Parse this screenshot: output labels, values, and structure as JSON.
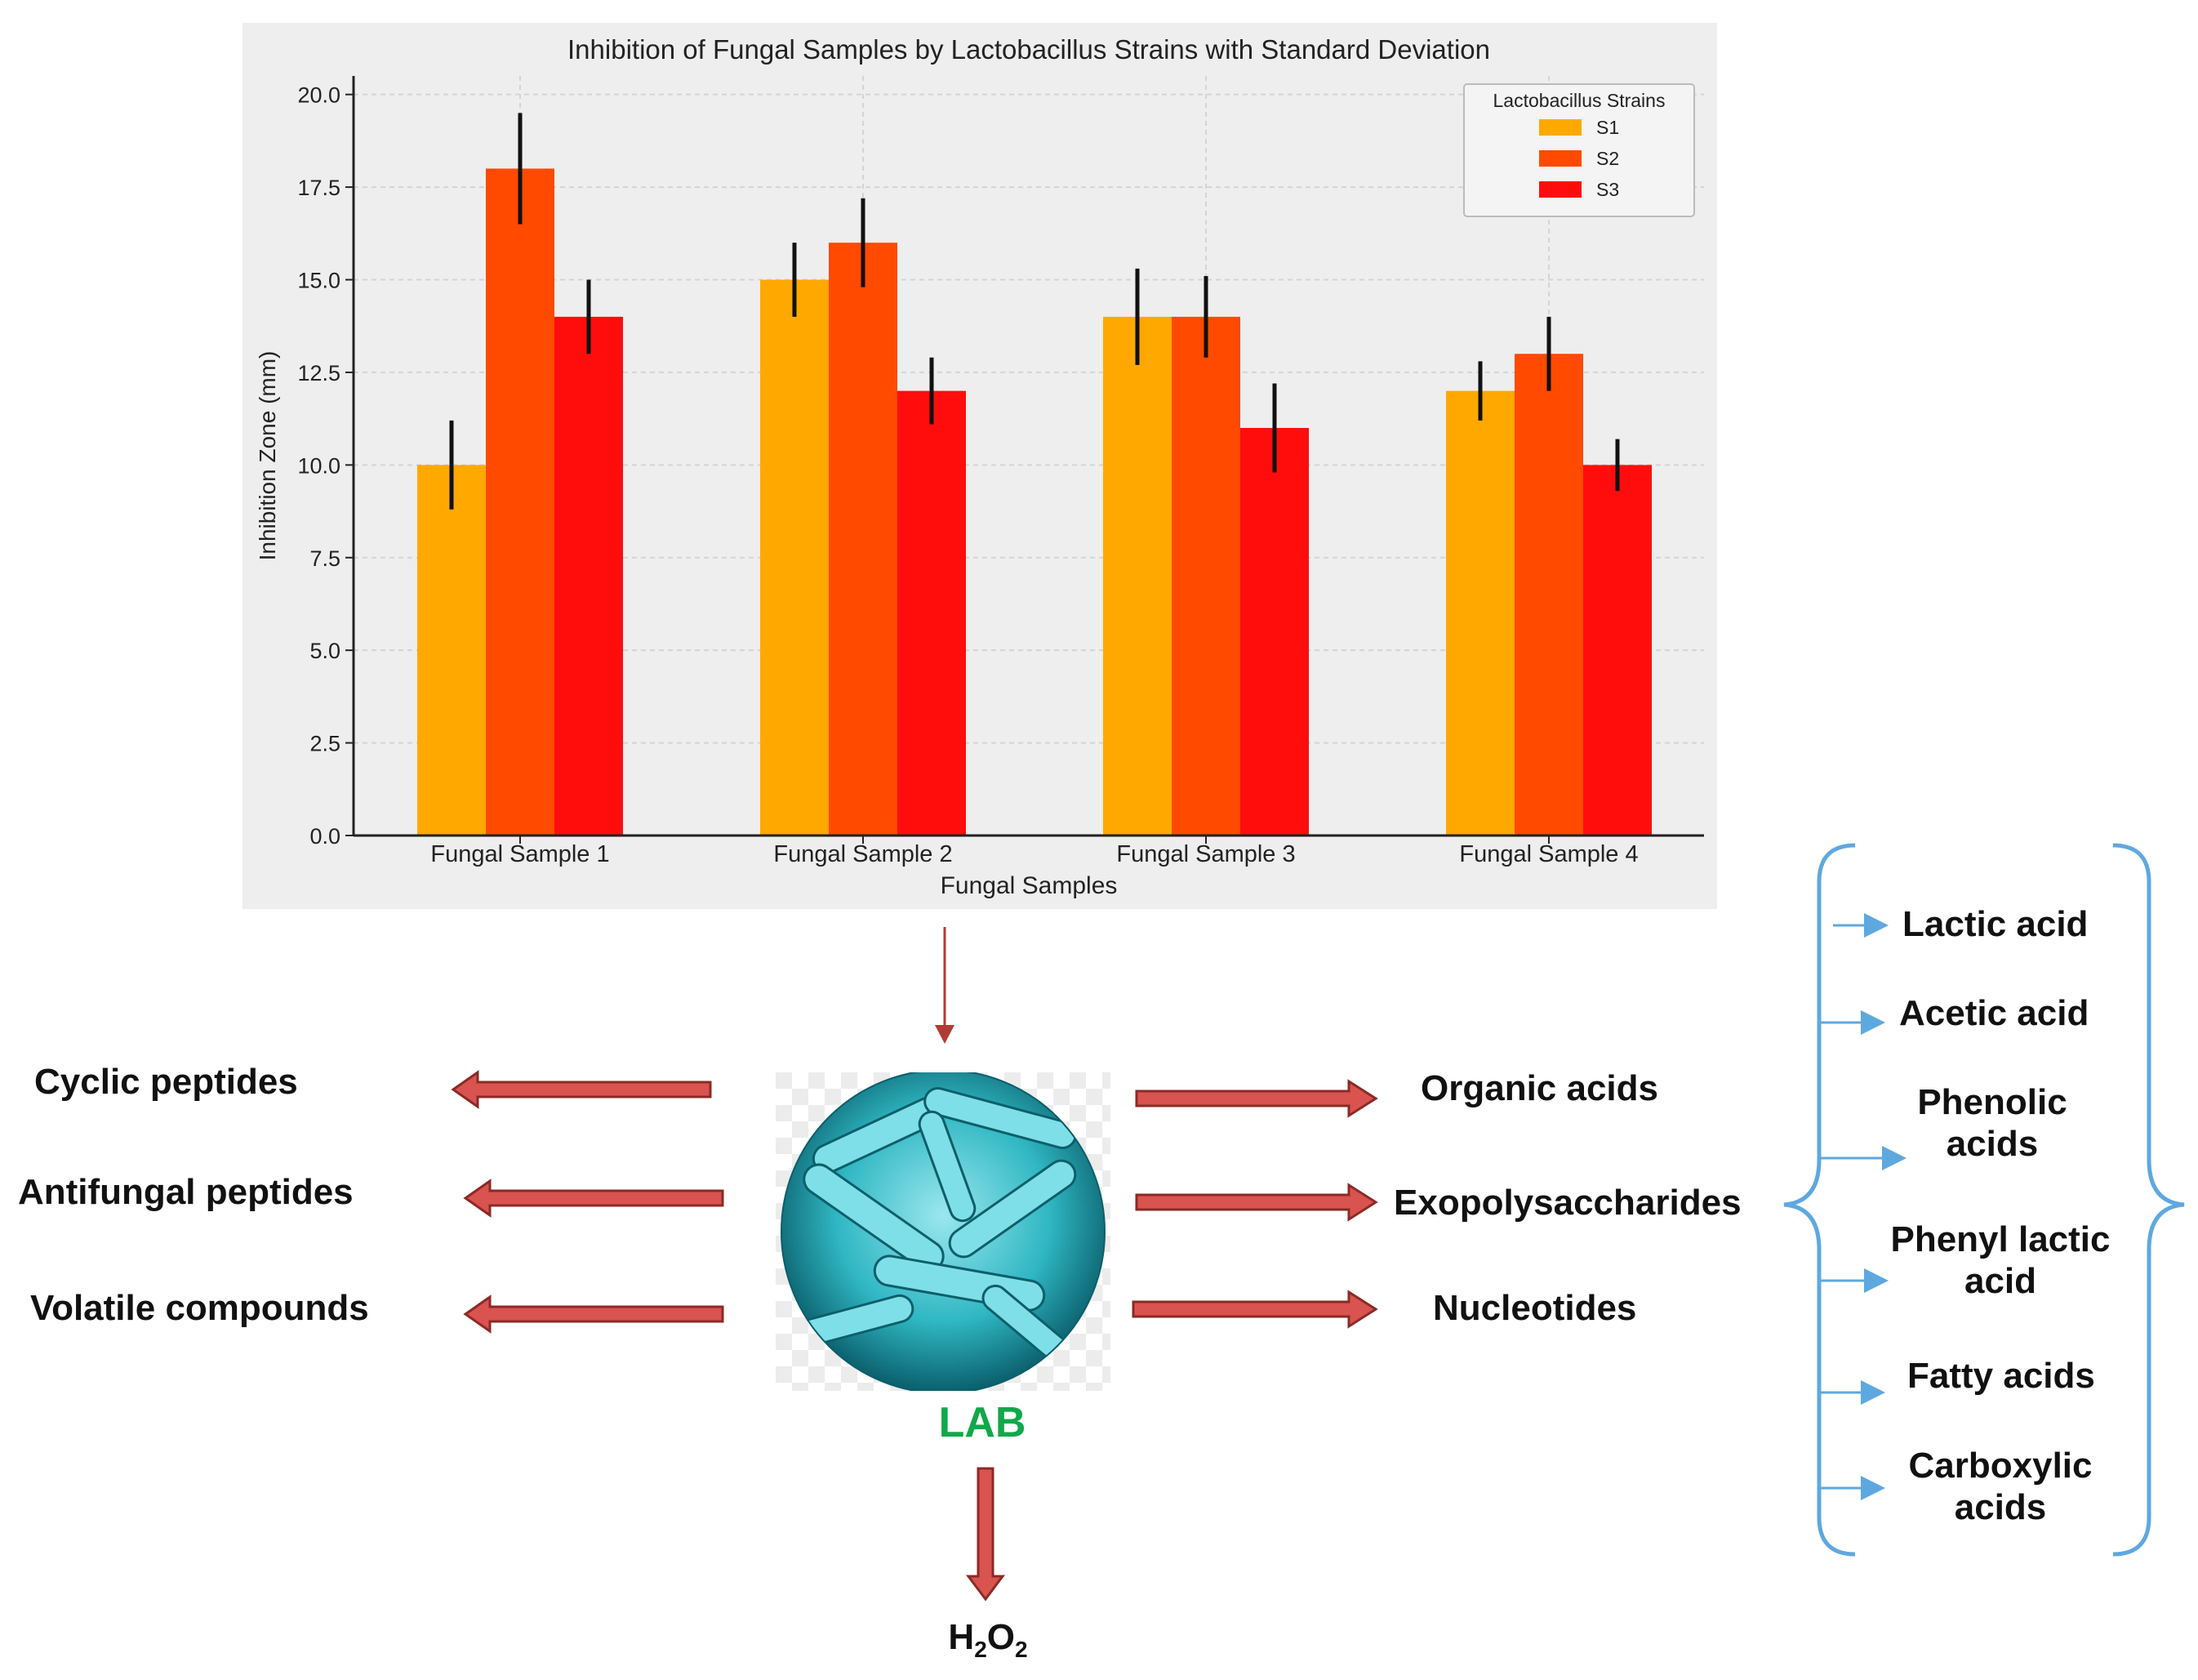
{
  "chart_data": {
    "type": "bar",
    "title": "Inhibition of Fungal Samples by Lactobacillus Strains with Standard Deviation",
    "xlabel": "Fungal Samples",
    "ylabel": "Inhibition Zone (mm)",
    "ylim": [
      0,
      20.5
    ],
    "yticks": [
      "0.0",
      "2.5",
      "5.0",
      "7.5",
      "10.0",
      "12.5",
      "15.0",
      "17.5",
      "20.0"
    ],
    "categories": [
      "Fungal Sample 1",
      "Fungal Sample 2",
      "Fungal Sample 3",
      "Fungal Sample 4"
    ],
    "legend_title": "Lactobacillus Strains",
    "legend_position": "top-right",
    "grid": true,
    "series": [
      {
        "name": "S1",
        "values": [
          10,
          15,
          14,
          12
        ],
        "errors": [
          1.2,
          1.0,
          1.3,
          0.8
        ],
        "color": "#ffa800"
      },
      {
        "name": "S2",
        "values": [
          18,
          16,
          14,
          13
        ],
        "errors": [
          1.5,
          1.2,
          1.1,
          1.0
        ],
        "color": "#ff4a00"
      },
      {
        "name": "S3",
        "values": [
          14,
          12,
          11,
          10
        ],
        "errors": [
          1.0,
          0.9,
          1.2,
          0.7
        ],
        "color": "#ff0d0d"
      }
    ]
  },
  "diagram": {
    "center_label": "LAB",
    "left_products": [
      "Cyclic peptides",
      "Antifungal peptides",
      "Volatile compounds"
    ],
    "right_products": [
      "Organic acids",
      "Exopolysaccharides",
      "Nucleotides"
    ],
    "bottom_product": {
      "main": "H",
      "sub1": "2",
      "mid": "O",
      "sub2": "2"
    },
    "organic_acids": [
      "Lactic acid",
      "Acetic acid",
      "Phenolic acids",
      "Phenyl lactic acid",
      "Fatty acids",
      "Carboxylic acids"
    ]
  },
  "colors": {
    "arrow_fill": "#d9534f",
    "arrow_stroke": "#8b2a26",
    "brace": "#5ea8e0",
    "lab_label": "#11a84a",
    "bacteria": "#2fb7c3"
  }
}
